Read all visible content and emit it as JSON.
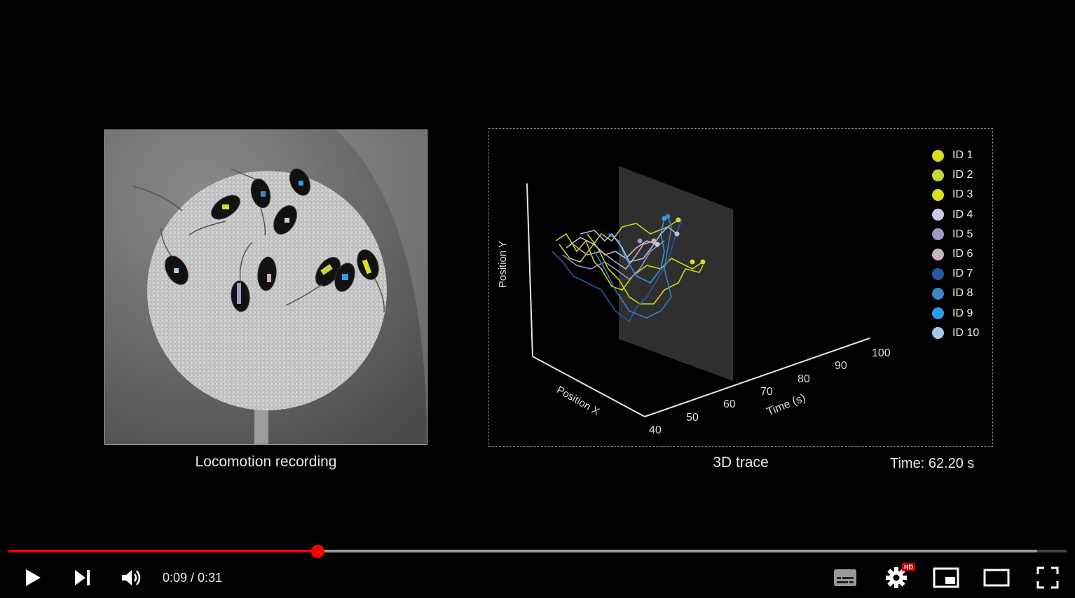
{
  "video": {
    "left_panel": {
      "caption": "Locomotion recording"
    },
    "right_panel": {
      "caption": "3D trace",
      "time_readout": "Time: 62.20 s",
      "axis_y_label": "Position Y",
      "axis_x_label": "Position X",
      "axis_t_label": "Time (s)",
      "time_ticks": [
        "40",
        "50",
        "60",
        "70",
        "80",
        "90",
        "100"
      ],
      "legend": [
        {
          "label": "ID 1",
          "color": "#d4e01a"
        },
        {
          "label": "ID 2",
          "color": "#c9d63a"
        },
        {
          "label": "ID 3",
          "color": "#d8e21c"
        },
        {
          "label": "ID 4",
          "color": "#c9cbe6"
        },
        {
          "label": "ID 5",
          "color": "#9a9cc4"
        },
        {
          "label": "ID 6",
          "color": "#c8b4c0"
        },
        {
          "label": "ID 7",
          "color": "#2a5aa6"
        },
        {
          "label": "ID 8",
          "color": "#3a86cc"
        },
        {
          "label": "ID 9",
          "color": "#2f9be8"
        },
        {
          "label": "ID 10",
          "color": "#a8c8ec"
        }
      ]
    }
  },
  "controls": {
    "progress": {
      "played": 0.2925,
      "buffered": 0.972
    },
    "time_display": "0:09 / 0:31",
    "hd_badge": "HD",
    "accent_color": "#ff0000"
  }
}
